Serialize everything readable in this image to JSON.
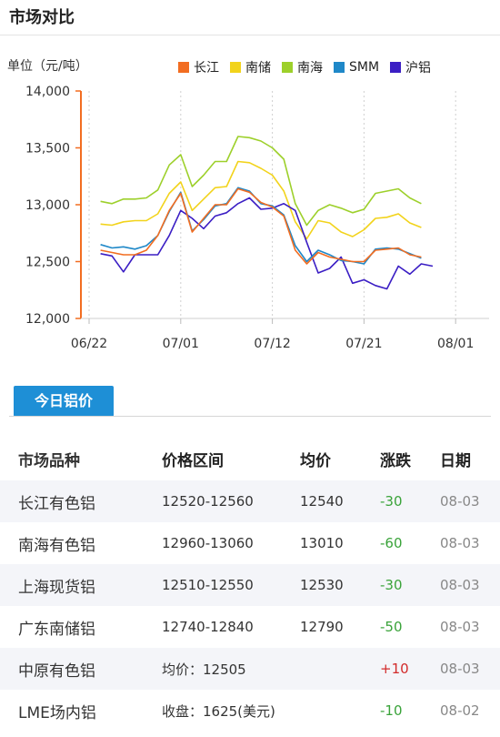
{
  "header": {
    "title": "市场对比"
  },
  "chart_data": {
    "type": "line",
    "unit_label": "单位（元/吨）",
    "ylim": [
      12000,
      14000
    ],
    "yticks": [
      "14,000",
      "13,500",
      "13,000",
      "12,500",
      "12,000"
    ],
    "ytick_values": [
      14000,
      13500,
      13000,
      12500,
      12000
    ],
    "xticks": [
      "06/22",
      "07/01",
      "07/12",
      "07/21",
      "08/01"
    ],
    "xtick_index": [
      0,
      8,
      16,
      24,
      32
    ],
    "x_count": 35,
    "series": [
      {
        "name": "长江",
        "color": "#f26d21",
        "values": [
          12600,
          12580,
          12560,
          12560,
          12600,
          12730,
          12950,
          13100,
          12760,
          12880,
          13000,
          13000,
          13140,
          13110,
          13020,
          12980,
          12900,
          12600,
          12480,
          12580,
          12540,
          12520,
          12500,
          12500,
          12600,
          12610,
          12620,
          12560,
          12540
        ]
      },
      {
        "name": "南储",
        "color": "#f2d31b",
        "values": [
          12830,
          12820,
          12850,
          12860,
          12860,
          12920,
          13100,
          13200,
          12950,
          13050,
          13150,
          13160,
          13380,
          13370,
          13320,
          13260,
          13120,
          12850,
          12700,
          12860,
          12840,
          12760,
          12720,
          12780,
          12880,
          12890,
          12920,
          12840,
          12800
        ]
      },
      {
        "name": "南海",
        "color": "#9dd02b",
        "values": [
          13030,
          13010,
          13050,
          13050,
          13060,
          13130,
          13350,
          13440,
          13160,
          13260,
          13380,
          13380,
          13600,
          13590,
          13560,
          13500,
          13400,
          13010,
          12820,
          12950,
          13000,
          12970,
          12930,
          12960,
          13100,
          13120,
          13140,
          13060,
          13010
        ]
      },
      {
        "name": "SMM",
        "color": "#1f88c8",
        "values": [
          12650,
          12620,
          12630,
          12610,
          12640,
          12730,
          12940,
          13110,
          12770,
          12870,
          12990,
          13010,
          13150,
          13120,
          13010,
          12990,
          12910,
          12640,
          12500,
          12600,
          12560,
          12510,
          12500,
          12480,
          12610,
          12620,
          12610,
          12570,
          12530
        ]
      },
      {
        "name": "沪铝",
        "color": "#3b1ec4",
        "values": [
          12570,
          12550,
          12410,
          12560,
          12560,
          12560,
          12730,
          12950,
          12880,
          12790,
          12900,
          12930,
          13010,
          13060,
          12960,
          12970,
          13010,
          12950,
          12670,
          12400,
          12440,
          12540,
          12310,
          12340,
          12290,
          12260,
          12460,
          12390,
          12480,
          12460
        ]
      }
    ]
  },
  "section": {
    "tab_label": "今日铝价"
  },
  "table": {
    "headers": [
      "市场品种",
      "价格区间",
      "均价",
      "涨跌",
      "日期"
    ],
    "rows": [
      {
        "market": "长江有色铝",
        "range": "12520-12560",
        "avg": "12540",
        "change": "-30",
        "date": "08-03",
        "dir": "down"
      },
      {
        "market": "南海有色铝",
        "range": "12960-13060",
        "avg": "13010",
        "change": "-60",
        "date": "08-03",
        "dir": "down"
      },
      {
        "market": "上海现货铝",
        "range": "12510-12550",
        "avg": "12530",
        "change": "-30",
        "date": "08-03",
        "dir": "down"
      },
      {
        "market": "广东南储铝",
        "range": "12740-12840",
        "avg": "12790",
        "change": "-50",
        "date": "08-03",
        "dir": "down"
      },
      {
        "market": "中原有色铝",
        "range": "均价：12505",
        "avg": "",
        "change": "+10",
        "date": "08-03",
        "dir": "up"
      },
      {
        "market": "LME场内铝",
        "range": "收盘：1625(美元)",
        "avg": "",
        "change": "-10",
        "date": "08-02",
        "dir": "down"
      }
    ]
  }
}
